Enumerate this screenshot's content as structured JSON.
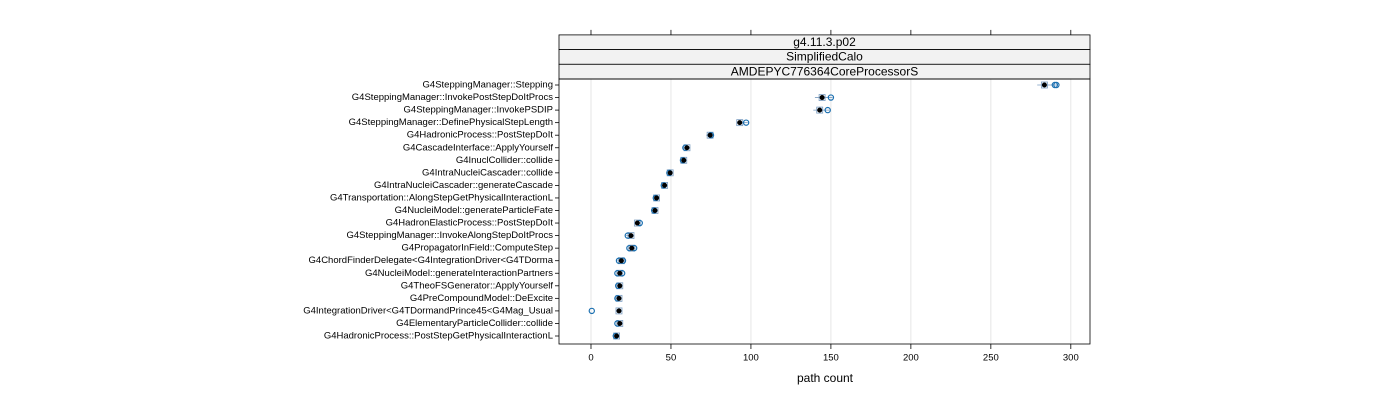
{
  "chart_data": {
    "type": "dotplot",
    "strips": [
      "g4.11.3.p02",
      "SimplifiedCalo",
      "AMDEPYC776364CoreProcessorS"
    ],
    "x_label": "path count",
    "xlim": [
      -20,
      312
    ],
    "xticks": [
      0,
      50,
      100,
      150,
      200,
      250,
      300
    ],
    "grid": true,
    "color": "#1a6fb0",
    "median_color": "#000000",
    "categories": [
      "G4SteppingManager::Stepping",
      "G4SteppingManager::InvokePostStepDoItProcs",
      "G4SteppingManager::InvokePSDIP",
      "G4SteppingManager::DefinePhysicalStepLength",
      "G4HadronicProcess::PostStepDoIt",
      "G4CascadeInterface::ApplyYourself",
      "G4InuclCollider::collide",
      "G4IntraNucleiCascader::collide",
      "G4IntraNucleiCascader::generateCascade",
      "G4Transportation::AlongStepGetPhysicalInteractionL",
      "G4NucleiModel::generateParticleFate",
      "G4HadronElasticProcess::PostStepDoIt",
      "G4SteppingManager::InvokeAlongStepDoItProcs",
      "G4PropagatorInField::ComputeStep",
      "G4ChordFinderDelegate<G4IntegrationDriver<G4TDorma",
      "G4NucleiModel::generateInteractionPartners",
      "G4TheoFSGenerator::ApplyYourself",
      "G4PreCompoundModel::DeExcite",
      "G4IntegrationDriver<G4TDormandPrince45<G4Mag_Usual",
      "G4ElementaryParticleCollider::collide",
      "G4HadronicProcess::PostStepGetPhysicalInteractionL"
    ],
    "medians": [
      283.5,
      144.5,
      143,
      93,
      74.5,
      60,
      58,
      49.5,
      46,
      41,
      40,
      29,
      25,
      25.5,
      19,
      18,
      18,
      17.5,
      17.5,
      18,
      16
    ],
    "lows": [
      279,
      140,
      139,
      91,
      72,
      58,
      56,
      48,
      44,
      39,
      38,
      27,
      22,
      23,
      16.5,
      16,
      16.5,
      16,
      15.5,
      16,
      14.5
    ],
    "highs": [
      292,
      151,
      149,
      98,
      77,
      62,
      60,
      51,
      48,
      43,
      42,
      31,
      27,
      28,
      21,
      20,
      20,
      19,
      19.5,
      20,
      18
    ],
    "points": [
      [
        290,
        291
      ],
      [
        150
      ],
      [
        148
      ],
      [
        97
      ],
      [
        75
      ],
      [
        59
      ],
      [
        57.5
      ],
      [
        49
      ],
      [
        45.5
      ],
      [
        40.5
      ],
      [
        39.5
      ],
      [
        30.5
      ],
      [
        23
      ],
      [
        24,
        27
      ],
      [
        17.5,
        20
      ],
      [
        16.5,
        19.5
      ],
      [
        17
      ],
      [
        16.5
      ],
      [
        0.5
      ],
      [
        16.5
      ],
      [
        15.5
      ]
    ]
  }
}
